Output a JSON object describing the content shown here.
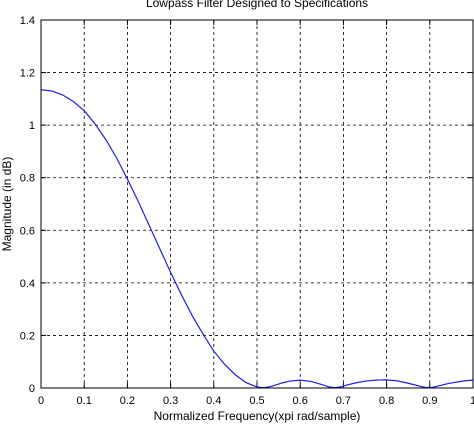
{
  "chart_data": {
    "type": "line",
    "title": "Lowpass Filter Designed to Specifications",
    "xlabel": "Normalized Frequency(xpi rad/sample)",
    "ylabel": "Magnitude (in dB)",
    "xlim": [
      0,
      1
    ],
    "ylim": [
      0,
      1.4
    ],
    "xticks": [
      "0",
      "0.1",
      "0.2",
      "0.3",
      "0.4",
      "0.5",
      "0.6",
      "0.7",
      "0.8",
      "0.9",
      "1"
    ],
    "yticks": [
      "0",
      "0.2",
      "0.4",
      "0.6",
      "0.8",
      "1",
      "1.2",
      "1.4"
    ],
    "grid": true,
    "series": [
      {
        "color": "#1f1fe0",
        "x": [
          0,
          0.025,
          0.05,
          0.075,
          0.1,
          0.125,
          0.15,
          0.175,
          0.2,
          0.225,
          0.25,
          0.275,
          0.3,
          0.325,
          0.35,
          0.375,
          0.4,
          0.425,
          0.45,
          0.475,
          0.5,
          0.515,
          0.53,
          0.545,
          0.56,
          0.575,
          0.6,
          0.625,
          0.65,
          0.665,
          0.68,
          0.695,
          0.71,
          0.73,
          0.75,
          0.775,
          0.8,
          0.825,
          0.85,
          0.875,
          0.89,
          0.905,
          0.92,
          0.94,
          0.96,
          0.98,
          1.0
        ],
        "y": [
          1.135,
          1.13,
          1.115,
          1.09,
          1.055,
          1.005,
          0.945,
          0.875,
          0.795,
          0.71,
          0.62,
          0.53,
          0.44,
          0.355,
          0.275,
          0.205,
          0.14,
          0.09,
          0.05,
          0.02,
          0.004,
          0.001,
          0.005,
          0.012,
          0.02,
          0.026,
          0.03,
          0.025,
          0.013,
          0.005,
          0.001,
          0.005,
          0.012,
          0.02,
          0.026,
          0.03,
          0.031,
          0.027,
          0.018,
          0.008,
          0.002,
          0.002,
          0.008,
          0.016,
          0.022,
          0.027,
          0.03
        ]
      }
    ]
  }
}
